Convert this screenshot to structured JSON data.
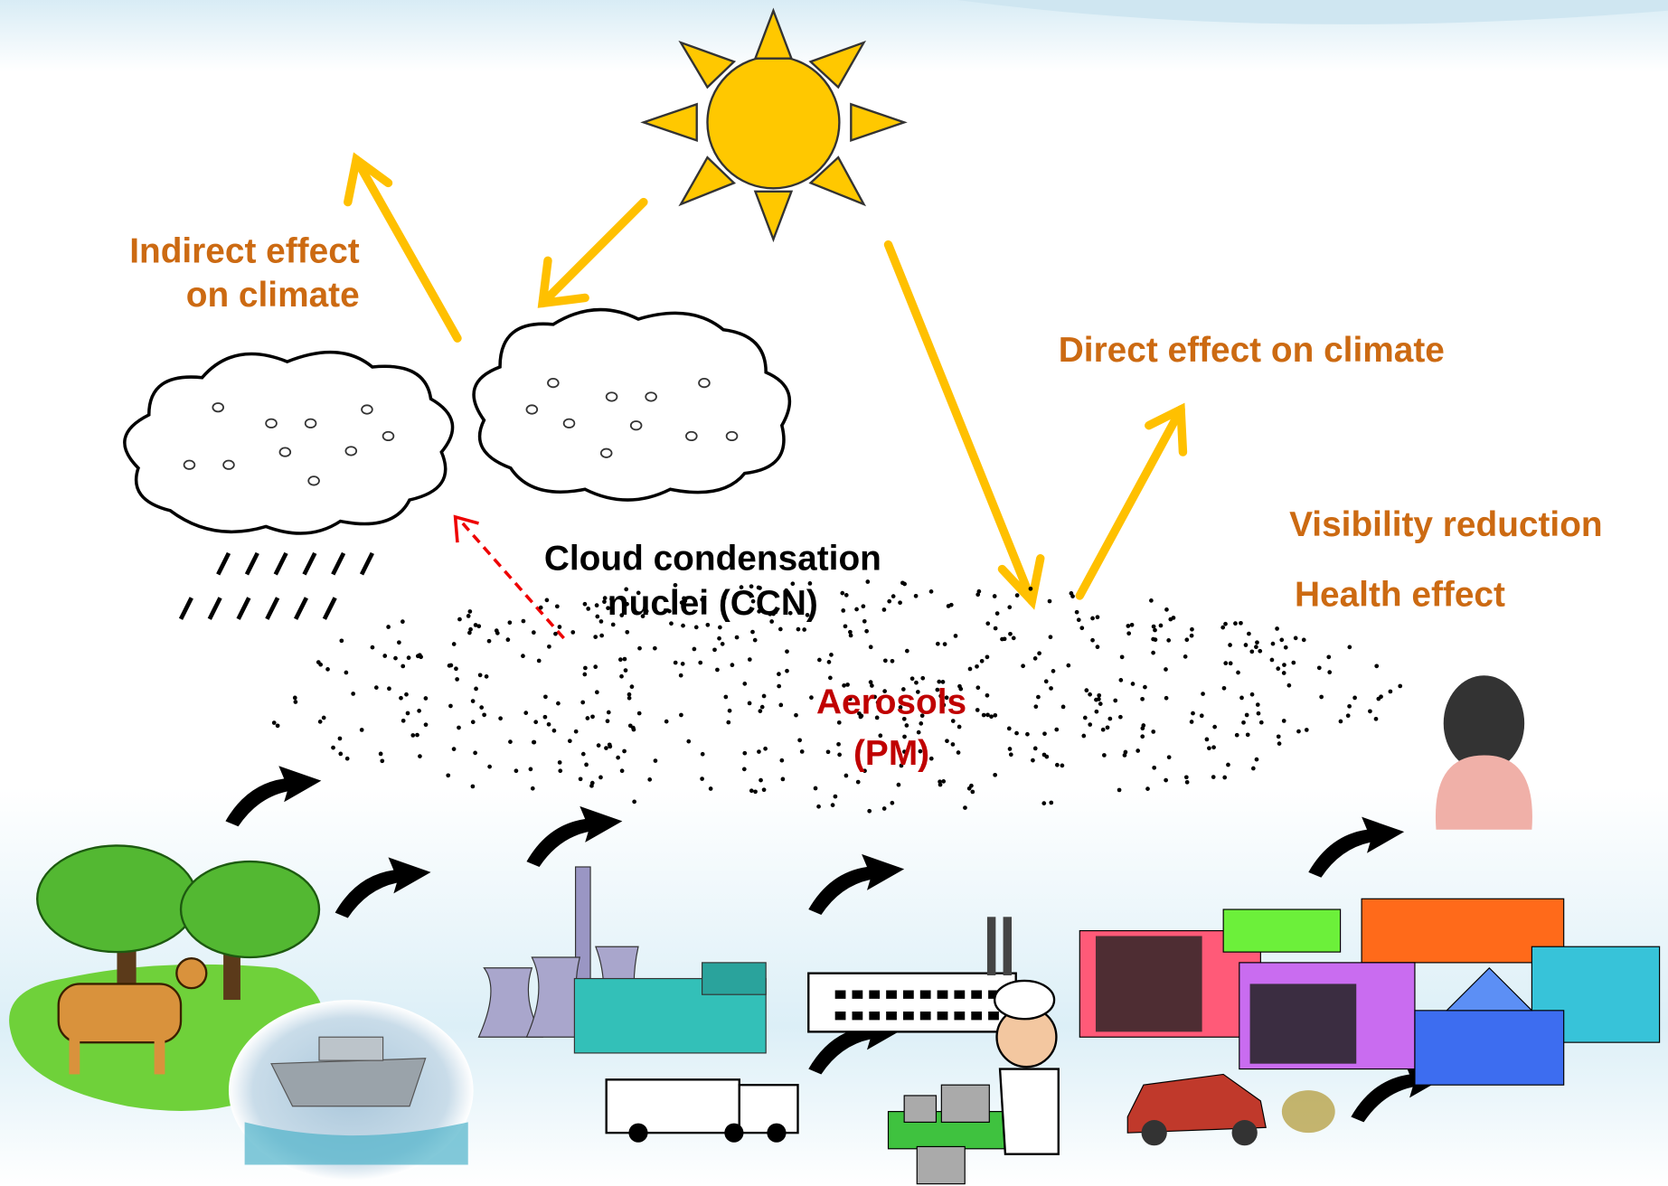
{
  "labels": {
    "indirect_effect": [
      "Indirect effect",
      "on climate"
    ],
    "direct_effect": "Direct effect on climate",
    "visibility": "Visibility reduction",
    "health": "Health effect",
    "ccn": [
      "Cloud condensation",
      "nuclei (CCN)"
    ],
    "aerosols": [
      "Aerosols",
      "(PM)"
    ]
  }
}
